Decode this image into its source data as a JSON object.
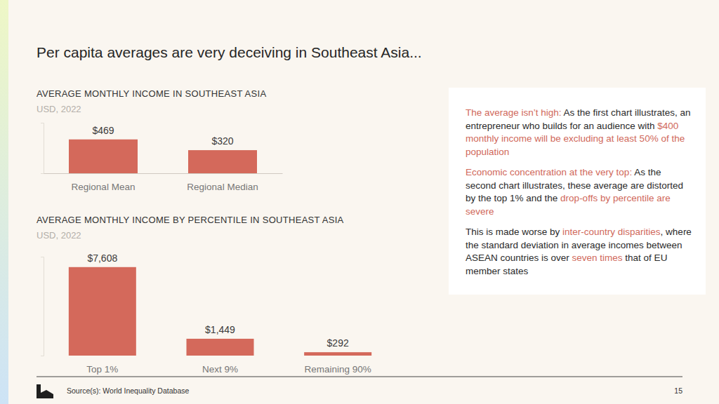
{
  "title": "Per capita averages are very deceiving in Southeast Asia...",
  "chart_data": [
    {
      "type": "bar",
      "title": "AVERAGE MONTHLY INCOME IN SOUTHEAST ASIA",
      "subtitle": "USD, 2022",
      "categories": [
        "Regional Mean",
        "Regional Median"
      ],
      "values": [
        469,
        320
      ],
      "value_labels": [
        "$469",
        "$320"
      ],
      "color": "#d4695b",
      "ylim": [
        0,
        700
      ],
      "data_labels": true,
      "tick_labels": "x"
    },
    {
      "type": "bar",
      "title": "AVERAGE MONTHLY INCOME BY PERCENTILE IN SOUTHEAST ASIA",
      "subtitle": "USD, 2022",
      "categories": [
        "Top 1%",
        "Next 9%",
        "Remaining 90%"
      ],
      "values": [
        7608,
        1449,
        292
      ],
      "value_labels": [
        "$7,608",
        "$1,449",
        "$292"
      ],
      "color": "#d4695b",
      "ylim": [
        0,
        8500
      ],
      "data_labels": true,
      "tick_labels": "x"
    }
  ],
  "panel": {
    "paragraphs": [
      [
        {
          "text": "The average isn’t high:",
          "color": "#d0685a"
        },
        {
          "text": " As the first chart illustrates, an entrepreneur who builds for an audience with ",
          "color": "#2a2a2a"
        },
        {
          "text": "$400 monthly income will be excluding at least 50% of the population",
          "color": "#d0685a"
        }
      ],
      [
        {
          "text": "Economic concentration at the very top:",
          "color": "#d0685a"
        },
        {
          "text": " As the second chart illustrates, these average are distorted by the top 1% and the ",
          "color": "#2a2a2a"
        },
        {
          "text": "drop-offs by percentile are severe",
          "color": "#d0685a"
        }
      ],
      [
        {
          "text": "This is made worse by ",
          "color": "#2a2a2a"
        },
        {
          "text": "inter-country disparities",
          "color": "#d0685a"
        },
        {
          "text": ", where the standard deviation in average incomes between ASEAN countries is over ",
          "color": "#2a2a2a"
        },
        {
          "text": "seven times",
          "color": "#d0685a"
        },
        {
          "text": " that of EU member states",
          "color": "#2a2a2a"
        }
      ]
    ]
  },
  "footer": {
    "source": "Source(s): World Inequality Database",
    "page": 15
  }
}
